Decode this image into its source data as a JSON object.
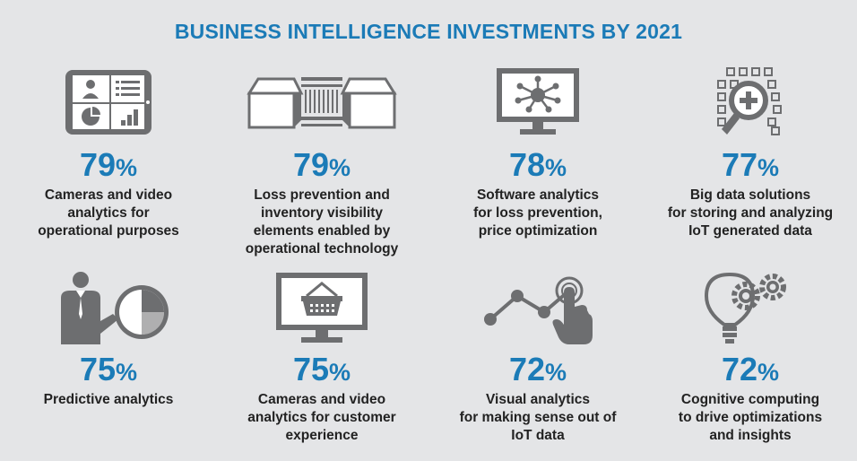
{
  "title": "BUSINESS INTELLIGENCE INVESTMENTS BY 2021",
  "colors": {
    "accent": "#1b7bb7",
    "icon": "#6d6e70",
    "text": "#222222",
    "background": "#e4e5e7"
  },
  "items": [
    {
      "value": "79",
      "unit": "%",
      "icon": "video-monitoring-tablet-icon",
      "lines": [
        "Cameras and video",
        "analytics for",
        "operational purposes"
      ]
    },
    {
      "value": "79",
      "unit": "%",
      "icon": "conveyor-boxes-icon",
      "lines": [
        "Loss prevention and",
        "inventory visibility",
        "elements enabled by",
        "operational technology"
      ]
    },
    {
      "value": "78",
      "unit": "%",
      "icon": "network-monitor-icon",
      "lines": [
        "Software analytics",
        "for loss prevention,",
        "price optimization"
      ]
    },
    {
      "value": "77",
      "unit": "%",
      "icon": "big-data-magnifier-icon",
      "lines": [
        "Big data solutions",
        "for storing and analyzing",
        "IoT generated data"
      ]
    },
    {
      "value": "75",
      "unit": "%",
      "icon": "businessman-pie-chart-icon",
      "lines": [
        "Predictive analytics"
      ]
    },
    {
      "value": "75",
      "unit": "%",
      "icon": "shopping-basket-monitor-icon",
      "lines": [
        "Cameras and video",
        "analytics for customer",
        "experience"
      ]
    },
    {
      "value": "72",
      "unit": "%",
      "icon": "touch-line-graph-icon",
      "lines": [
        "Visual analytics",
        "for making sense out of",
        "IoT data"
      ]
    },
    {
      "value": "72",
      "unit": "%",
      "icon": "lightbulb-gears-icon",
      "lines": [
        "Cognitive computing",
        "to drive optimizations",
        "and insights"
      ]
    }
  ]
}
